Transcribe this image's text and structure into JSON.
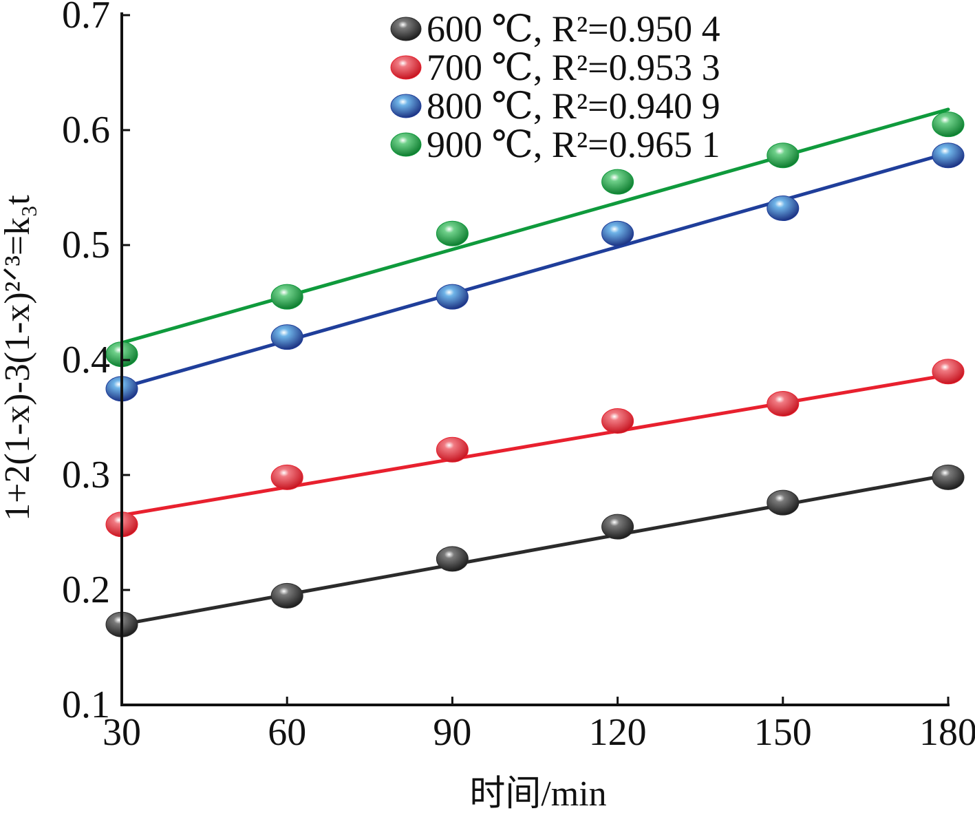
{
  "chart_data": {
    "type": "scatter",
    "xlabel": "时间/min",
    "ylabel": "1+2(1-x)-3(1-x)²ᐟ³=k₃t",
    "xlim": [
      30,
      180
    ],
    "ylim": [
      0.1,
      0.7
    ],
    "x_ticks": [
      "30",
      "60",
      "90",
      "120",
      "150",
      "180"
    ],
    "y_ticks": [
      "0.1",
      "0.2",
      "0.3",
      "0.4",
      "0.5",
      "0.6",
      "0.7"
    ],
    "x": [
      30,
      60,
      90,
      120,
      150,
      180
    ],
    "legend_position": "top-right",
    "series": [
      {
        "name": "600 ℃, R²=0.950 4",
        "color": "#2b2b2b",
        "values": [
          0.17,
          0.195,
          0.227,
          0.255,
          0.276,
          0.298
        ],
        "fit": [
          0.17,
          0.3
        ]
      },
      {
        "name": "700 ℃, R²=0.953 3",
        "color": "#e8202e",
        "values": [
          0.257,
          0.298,
          0.322,
          0.347,
          0.362,
          0.39
        ],
        "fit": [
          0.265,
          0.387
        ]
      },
      {
        "name": "800 ℃, R²=0.940 9",
        "color": "#1f3e9a",
        "values": [
          0.375,
          0.42,
          0.455,
          0.51,
          0.532,
          0.578
        ],
        "fit": [
          0.376,
          0.58
        ]
      },
      {
        "name": "900 ℃, R²=0.965 1",
        "color": "#0f9a3c",
        "values": [
          0.405,
          0.455,
          0.51,
          0.555,
          0.578,
          0.605
        ],
        "fit": [
          0.415,
          0.618
        ]
      }
    ]
  }
}
